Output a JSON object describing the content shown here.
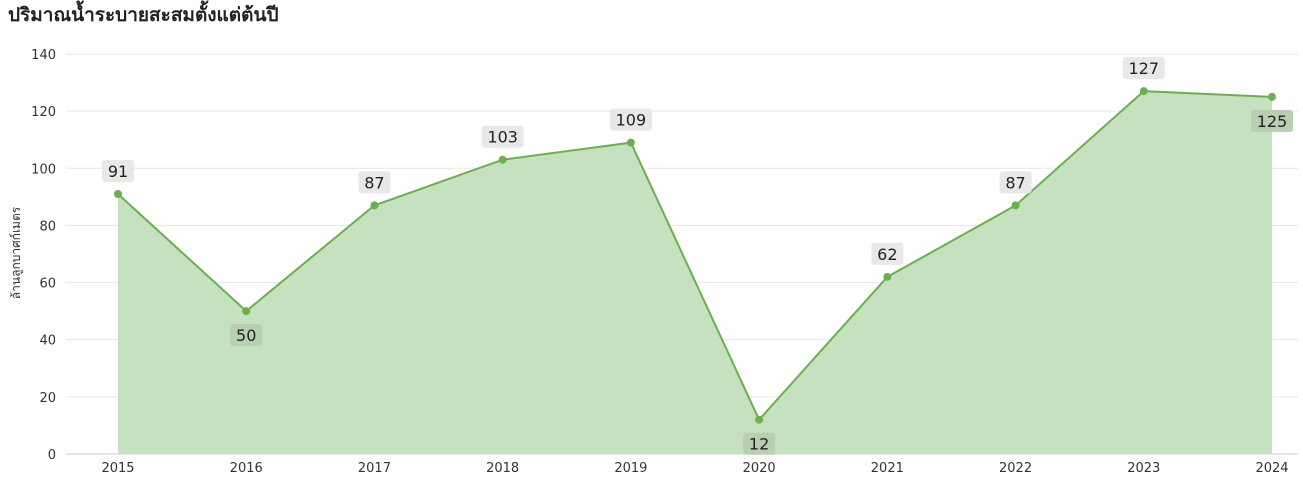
{
  "chart_data": {
    "type": "area",
    "title": "ปริมาณน้ำระบายสะสมตั้งแต่ต้นปี",
    "ylabel": "ล้านลูกบาศก์เมตร",
    "xlabel": "",
    "categories": [
      "2015",
      "2016",
      "2017",
      "2018",
      "2019",
      "2020",
      "2021",
      "2022",
      "2023",
      "2024"
    ],
    "values": [
      91,
      50,
      87,
      103,
      109,
      12,
      62,
      87,
      127,
      125
    ],
    "ylim": [
      0,
      140
    ],
    "yticks": [
      0,
      20,
      40,
      60,
      80,
      100,
      120,
      140
    ],
    "grid": true,
    "legend": "none",
    "colors": {
      "line": "#6ab04c",
      "fill": "#c6e1c0",
      "label_bg": "#e8e8e8",
      "label_bg_inside": "#b8cfb2"
    }
  }
}
